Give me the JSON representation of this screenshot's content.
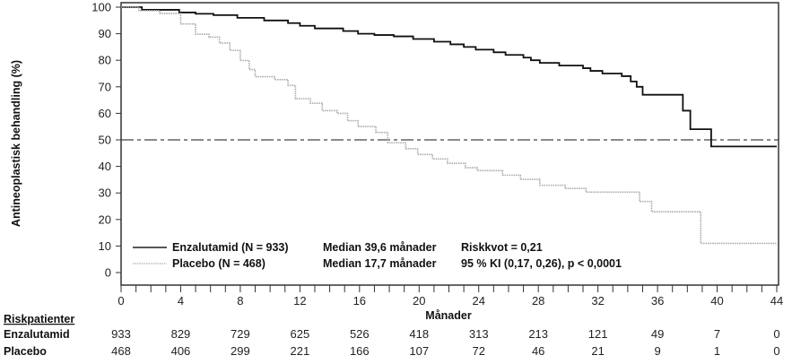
{
  "chart_data": {
    "type": "line",
    "subtype": "kaplan-meier",
    "ylabel": "Antineoplastisk behandling (%)",
    "xlabel": "Månader",
    "xlim": [
      0,
      44
    ],
    "ylim": [
      0,
      100
    ],
    "xticks": [
      0,
      4,
      8,
      12,
      16,
      20,
      24,
      28,
      32,
      36,
      40,
      44
    ],
    "yticks": [
      0,
      10,
      20,
      30,
      40,
      50,
      60,
      70,
      80,
      90,
      100
    ],
    "reference_line": {
      "y": 50,
      "style": "dash-dot"
    },
    "series": [
      {
        "name": "Enzalutamid (N = 933)",
        "color": "#111111",
        "style": "solid",
        "median": "Median 39,6 månader",
        "points": [
          [
            0,
            100
          ],
          [
            1.4,
            99
          ],
          [
            3.9,
            98
          ],
          [
            5,
            97.5
          ],
          [
            6.2,
            97
          ],
          [
            7.8,
            96
          ],
          [
            9.6,
            95
          ],
          [
            11.2,
            94
          ],
          [
            12,
            93
          ],
          [
            13,
            92
          ],
          [
            14.9,
            91
          ],
          [
            15.9,
            90
          ],
          [
            17,
            89.5
          ],
          [
            18.3,
            89
          ],
          [
            19.6,
            88
          ],
          [
            21,
            87
          ],
          [
            22.1,
            86
          ],
          [
            23,
            85
          ],
          [
            23.8,
            84
          ],
          [
            25,
            83
          ],
          [
            25.8,
            82
          ],
          [
            27,
            81
          ],
          [
            27.5,
            80
          ],
          [
            28.1,
            79
          ],
          [
            29.4,
            78
          ],
          [
            31,
            77
          ],
          [
            31.5,
            76
          ],
          [
            32.3,
            75
          ],
          [
            33.6,
            74
          ],
          [
            34.2,
            72
          ],
          [
            34.6,
            70
          ],
          [
            35,
            67
          ],
          [
            37.7,
            61
          ],
          [
            38.2,
            54
          ],
          [
            39.6,
            47.5
          ],
          [
            44,
            47.5
          ]
        ]
      },
      {
        "name": "Placebo (N = 468)",
        "color": "#aaaaaa",
        "style": "dotted",
        "median": "Median 17,7 månader",
        "points": [
          [
            0,
            100
          ],
          [
            1.2,
            98.7
          ],
          [
            2.6,
            97.6
          ],
          [
            4.0,
            93.7
          ],
          [
            5.0,
            89.8
          ],
          [
            5.9,
            88.7
          ],
          [
            6.6,
            86.5
          ],
          [
            7.3,
            83.7
          ],
          [
            8.0,
            79.9
          ],
          [
            8.6,
            76.5
          ],
          [
            9.0,
            73.8
          ],
          [
            10.3,
            72.7
          ],
          [
            11.2,
            70.5
          ],
          [
            11.7,
            65.5
          ],
          [
            12.7,
            63.8
          ],
          [
            13.5,
            61
          ],
          [
            14.5,
            60
          ],
          [
            15.2,
            57.2
          ],
          [
            15.9,
            55
          ],
          [
            17.1,
            52.8
          ],
          [
            17.9,
            48.9
          ],
          [
            19.1,
            46.7
          ],
          [
            19.9,
            44.5
          ],
          [
            20.9,
            42.8
          ],
          [
            21.9,
            41.2
          ],
          [
            23.1,
            39.5
          ],
          [
            23.9,
            38.4
          ],
          [
            25.6,
            36.7
          ],
          [
            26.8,
            35.1
          ],
          [
            28.1,
            32.9
          ],
          [
            29.8,
            31.7
          ],
          [
            31.2,
            30.3
          ],
          [
            34.8,
            26.8
          ],
          [
            35.6,
            22.9
          ],
          [
            38.9,
            11
          ],
          [
            44,
            11
          ]
        ]
      }
    ],
    "annotations": [
      "Riskkvot = 0,21",
      "95 % KI (0,17, 0,26), p < 0,0001"
    ],
    "legend_position": "bottom-left",
    "risk_table": {
      "title": "Riskpatienter",
      "rows": [
        {
          "label": "Enzalutamid",
          "values": [
            "933",
            "829",
            "729",
            "625",
            "526",
            "418",
            "313",
            "213",
            "121",
            "49",
            "7",
            "0"
          ]
        },
        {
          "label": "Placebo",
          "values": [
            "468",
            "406",
            "299",
            "221",
            "166",
            "107",
            "72",
            "46",
            "21",
            "9",
            "1",
            "0"
          ]
        }
      ]
    }
  }
}
